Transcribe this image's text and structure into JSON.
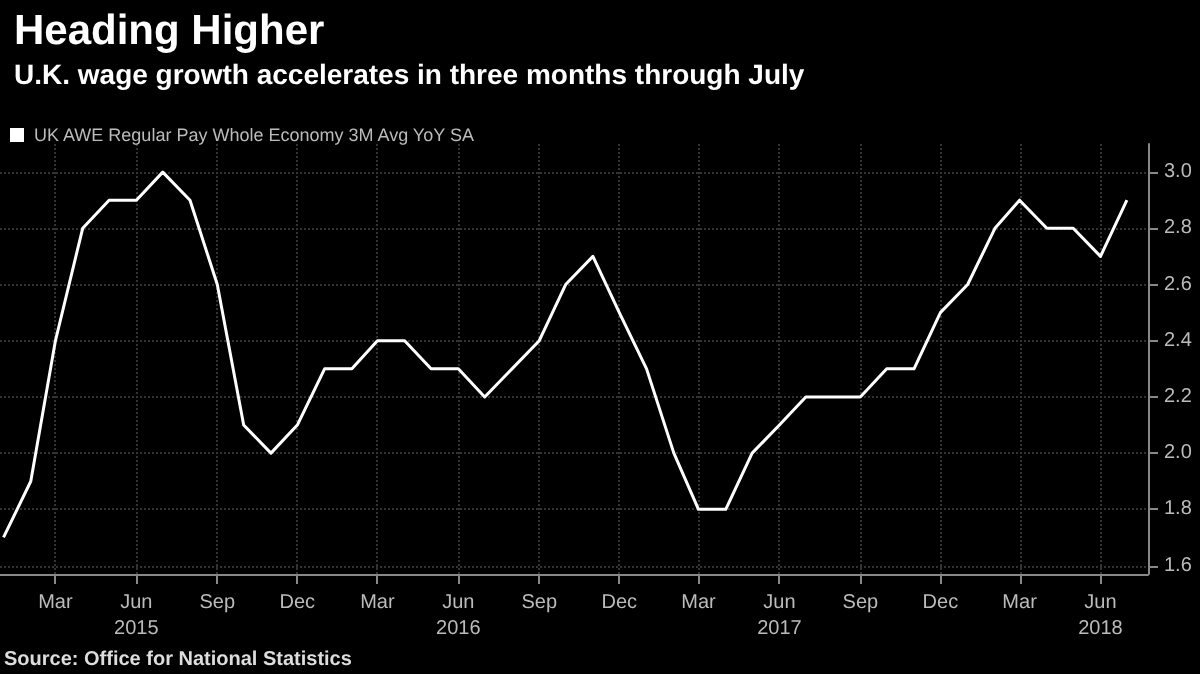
{
  "chart_data": {
    "type": "line",
    "title": "Heading Higher",
    "subtitle": "U.K. wage growth accelerates in three months through July",
    "x": [
      "2015-01",
      "2015-02",
      "2015-03",
      "2015-04",
      "2015-05",
      "2015-06",
      "2015-07",
      "2015-08",
      "2015-09",
      "2015-10",
      "2015-11",
      "2015-12",
      "2016-01",
      "2016-02",
      "2016-03",
      "2016-04",
      "2016-05",
      "2016-06",
      "2016-07",
      "2016-08",
      "2016-09",
      "2016-10",
      "2016-11",
      "2016-12",
      "2017-01",
      "2017-02",
      "2017-03",
      "2017-04",
      "2017-05",
      "2017-06",
      "2017-07",
      "2017-08",
      "2017-09",
      "2017-10",
      "2017-11",
      "2017-12",
      "2018-01",
      "2018-02",
      "2018-03",
      "2018-04",
      "2018-05",
      "2018-06",
      "2018-07"
    ],
    "series": [
      {
        "name": "UK AWE Regular Pay Whole Economy 3M Avg YoY SA",
        "color": "#ffffff",
        "values": [
          1.7,
          1.9,
          2.4,
          2.8,
          2.9,
          2.9,
          3.0,
          2.9,
          2.6,
          2.1,
          2.0,
          2.1,
          2.3,
          2.3,
          2.4,
          2.4,
          2.3,
          2.3,
          2.2,
          2.3,
          2.4,
          2.6,
          2.7,
          2.5,
          2.3,
          2.0,
          1.8,
          1.8,
          2.0,
          2.1,
          2.2,
          2.2,
          2.2,
          2.3,
          2.3,
          2.5,
          2.6,
          2.8,
          2.9,
          2.8,
          2.8,
          2.7,
          2.9
        ]
      }
    ],
    "xlim": [
      "2014-12-28",
      "2018-07-25"
    ],
    "xticks": [
      {
        "value": "2015-03",
        "label": "Mar"
      },
      {
        "value": "2015-06",
        "label": "Jun\n2015"
      },
      {
        "value": "2015-09",
        "label": "Sep"
      },
      {
        "value": "2015-12",
        "label": "Dec"
      },
      {
        "value": "2016-03",
        "label": "Mar"
      },
      {
        "value": "2016-06",
        "label": "Jun\n2016"
      },
      {
        "value": "2016-09",
        "label": "Sep"
      },
      {
        "value": "2016-12",
        "label": "Dec"
      },
      {
        "value": "2017-03",
        "label": "Mar"
      },
      {
        "value": "2017-06",
        "label": "Jun\n2017"
      },
      {
        "value": "2017-09",
        "label": "Sep"
      },
      {
        "value": "2017-12",
        "label": "Dec"
      },
      {
        "value": "2018-03",
        "label": "Mar"
      },
      {
        "value": "2018-06",
        "label": "Jun\n2018"
      }
    ],
    "ylim": [
      1.57,
      3.1
    ],
    "yticks": [
      1.6,
      1.8,
      {
        "value": 2,
        "label": "2.0"
      },
      2.2,
      2.4,
      2.6,
      2.8,
      {
        "value": 3,
        "label": "3.0"
      }
    ],
    "grid": true,
    "legend": "top left",
    "marker": "none",
    "line_style": "solid",
    "annotations": [
      "Source: Office for National Statistics"
    ]
  }
}
